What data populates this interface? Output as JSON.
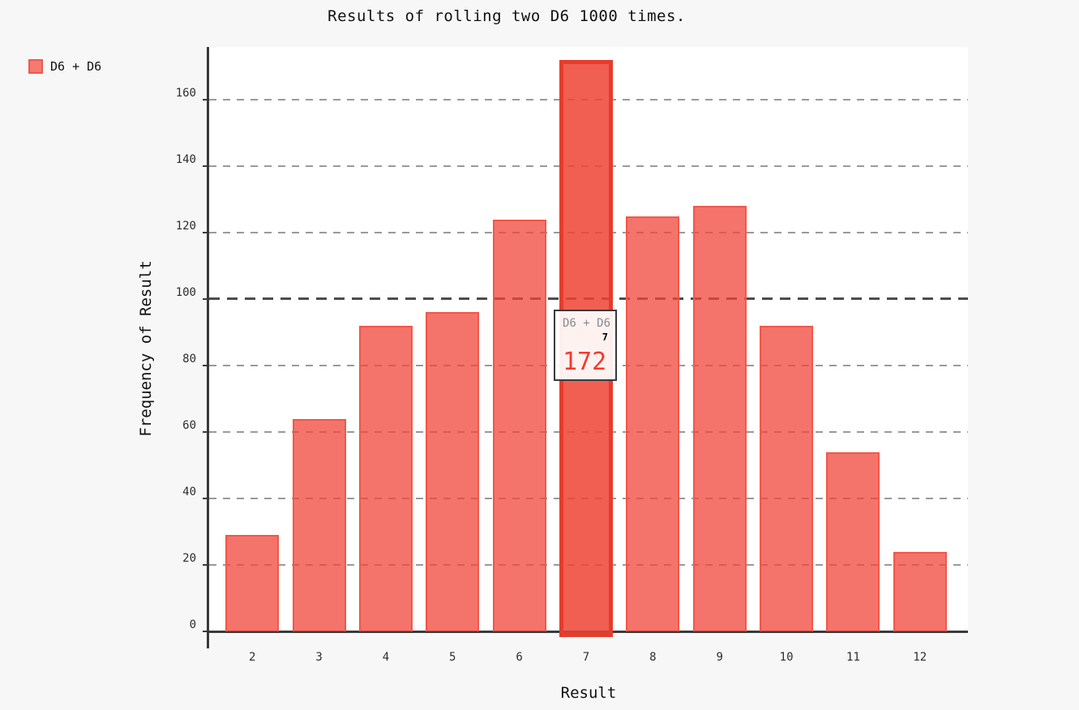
{
  "title": "Results of rolling two D6 1000 times.",
  "legend": {
    "label": "D6 + D6",
    "swatch_fill": "#f47a70",
    "swatch_border": "#f0594e"
  },
  "axes": {
    "x_title": "Result",
    "y_title": "Frequency of Result"
  },
  "tooltip": {
    "series": "D6 + D6",
    "category": "7",
    "value": "172"
  },
  "colors": {
    "page_bg": "#f7f7f7",
    "plot_bg": "#ffffff",
    "bar_fill": "rgba(240,70,58,0.75)",
    "bar_border": "#f25749",
    "active_bar_fill": "rgba(239,66,52,0.85)",
    "active_bar_border": "#e63c2c",
    "gridline": "#9a9a9a",
    "gridline_major": "#4d4d4d",
    "axis": "#3a3a3a",
    "tooltip_value": "#f43b2d"
  },
  "chart_data": {
    "type": "bar",
    "title": "Results of rolling two D6 1000 times.",
    "xlabel": "Result",
    "ylabel": "Frequency of Result",
    "categories": [
      "2",
      "3",
      "4",
      "5",
      "6",
      "7",
      "8",
      "9",
      "10",
      "11",
      "12"
    ],
    "series": [
      {
        "name": "D6 + D6",
        "values": [
          29,
          64,
          92,
          96,
          124,
          172,
          125,
          128,
          92,
          54,
          24
        ]
      }
    ],
    "total_rolls": 1000,
    "highlighted_category": "7",
    "highlighted_value": 172,
    "ylim": [
      0,
      175
    ],
    "yticks": [
      0,
      20,
      40,
      60,
      80,
      100,
      120,
      140,
      160
    ],
    "major_gridline_at": 100,
    "grid": "horizontal-dashed",
    "legend_position": "top-left",
    "legend_entries": [
      "D6 + D6"
    ]
  }
}
